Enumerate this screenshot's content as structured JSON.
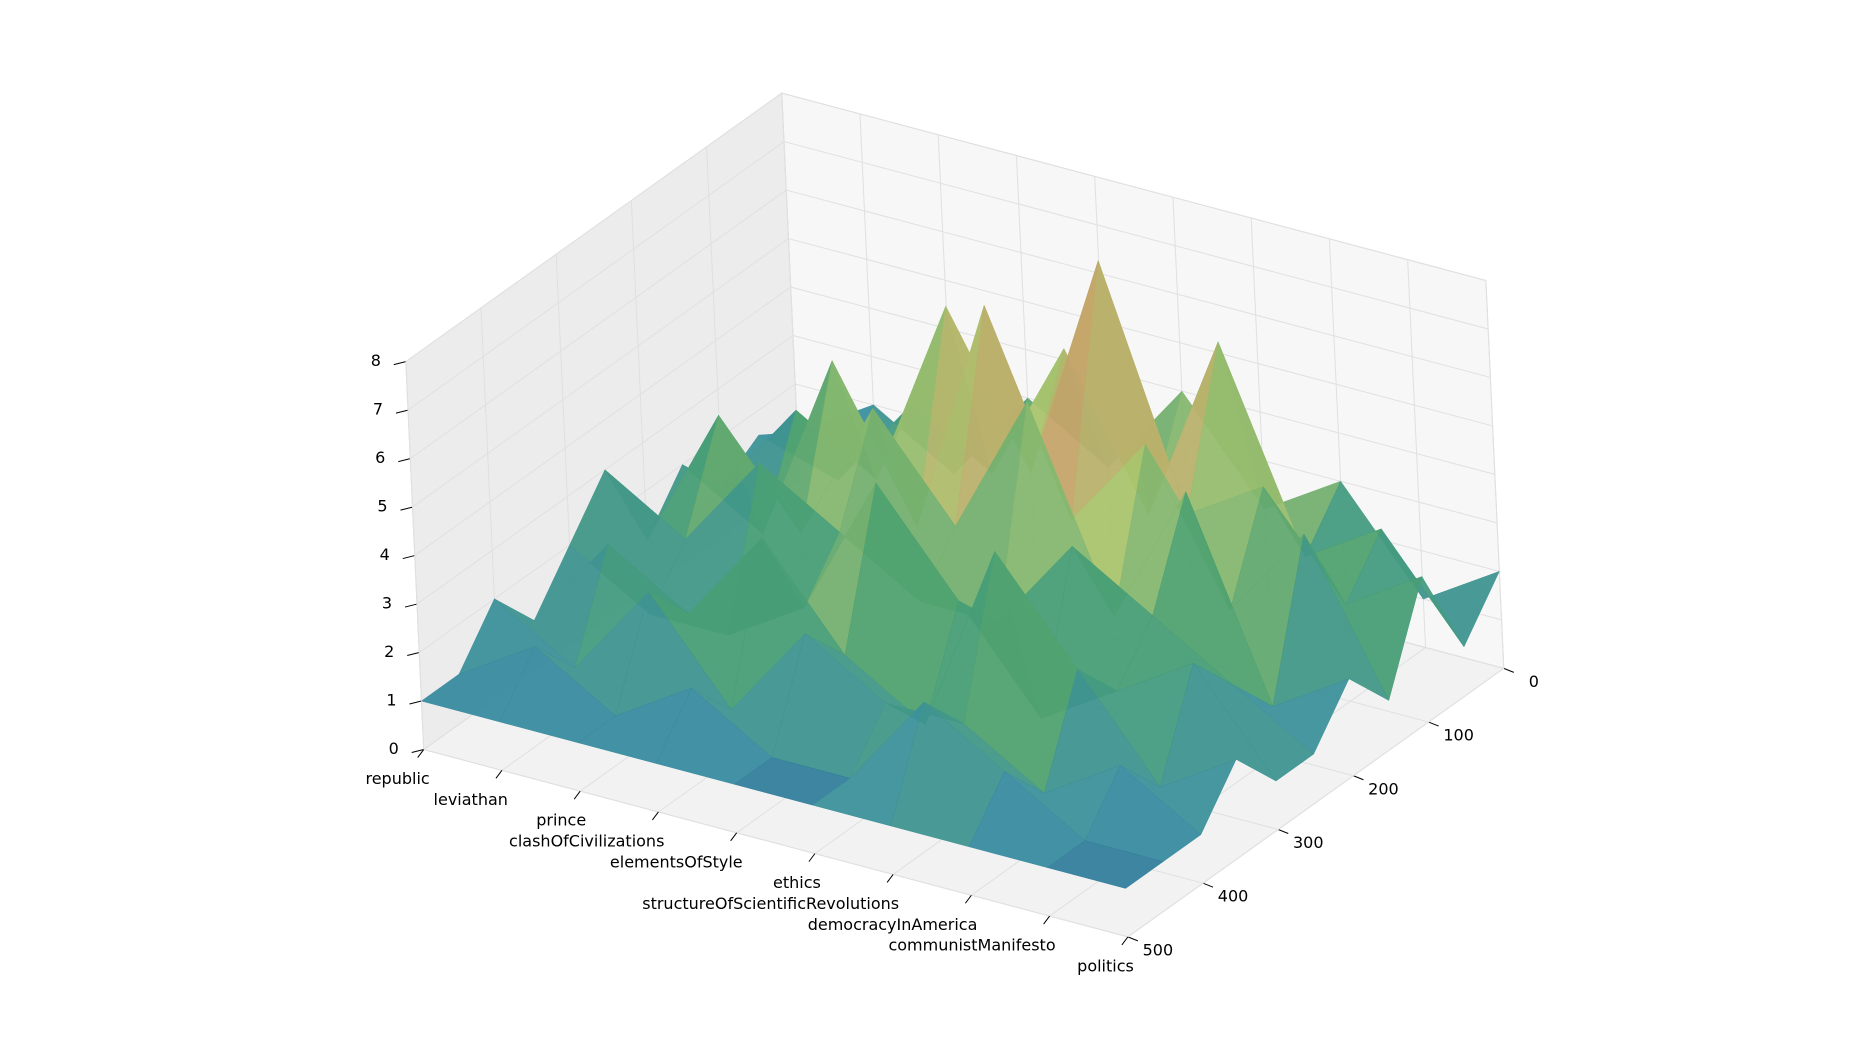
{
  "chart_data": {
    "type": "surface3d",
    "categories": [
      "republic",
      "leviathan",
      "prince",
      "clashOfCivilizations",
      "elementsOfStyle",
      "ethics",
      "structureOfScientificRevolutions",
      "democracyInAmerica",
      "communistManifesto",
      "politics"
    ],
    "x": [
      0,
      50,
      100,
      150,
      200,
      250,
      300,
      350,
      400,
      450,
      500
    ],
    "z": [
      [
        1,
        1.5,
        1,
        2,
        1,
        3,
        2,
        1,
        2,
        1,
        1
      ],
      [
        2,
        1,
        3,
        1,
        4,
        2,
        1,
        3,
        1,
        2,
        1
      ],
      [
        1,
        3,
        2,
        5,
        2,
        4,
        1,
        2,
        3,
        1,
        1
      ],
      [
        3,
        2,
        6,
        2,
        5,
        3,
        2,
        4,
        1,
        2,
        1
      ],
      [
        2,
        5,
        3,
        7,
        3,
        2,
        5,
        2,
        3,
        1,
        1
      ],
      [
        4,
        2,
        7.8,
        3,
        6,
        2,
        3,
        1,
        2,
        1,
        1
      ],
      [
        2,
        6,
        3,
        5,
        2,
        4,
        1,
        5,
        2,
        3,
        1
      ],
      [
        3,
        2,
        4,
        2,
        5,
        3,
        2,
        3,
        1,
        2,
        1
      ],
      [
        1,
        3,
        2,
        4,
        1,
        2,
        3,
        1,
        2,
        1,
        1
      ],
      [
        2,
        1,
        3,
        1,
        2,
        1,
        1,
        2,
        1,
        1,
        1
      ]
    ],
    "xlim": [
      0,
      500
    ],
    "xticks": [
      0,
      100,
      200,
      300,
      400,
      500
    ],
    "zlim": [
      0,
      8
    ],
    "zticks": [
      0,
      1,
      2,
      3,
      4,
      5,
      6,
      7,
      8
    ],
    "grid": true,
    "colormap": [
      "#1d4a8c",
      "#3a8fa0",
      "#4aa070",
      "#a9c46e",
      "#c8a06a",
      "#e4b8a8",
      "#ffffff"
    ]
  }
}
